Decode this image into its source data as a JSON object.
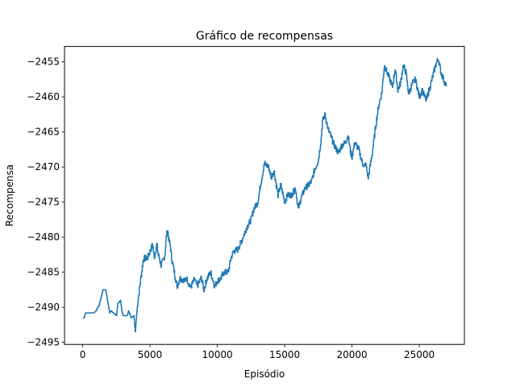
{
  "chart_data": {
    "type": "line",
    "title": "Gráfico de recompensas",
    "xlabel": "Episódio",
    "ylabel": "Recompensa",
    "xlim": [
      -1350,
      28350
    ],
    "ylim": [
      -2495.3,
      -2452.8
    ],
    "xticks": [
      0,
      5000,
      10000,
      15000,
      20000,
      25000
    ],
    "xtick_labels": [
      "0",
      "5000",
      "10000",
      "15000",
      "20000",
      "25000"
    ],
    "yticks": [
      -2495,
      -2490,
      -2485,
      -2480,
      -2475,
      -2470,
      -2465,
      -2460,
      -2455
    ],
    "ytick_labels": [
      "−2495",
      "−2490",
      "−2485",
      "−2480",
      "−2475",
      "−2470",
      "−2465",
      "−2460",
      "−2455"
    ],
    "grid": false,
    "color": "#1f77b4",
    "series": [
      {
        "x": [
          0,
          100,
          200,
          800,
          1000,
          1100,
          1200,
          1500,
          1600,
          1700,
          2000,
          2100,
          2500,
          2600,
          2800,
          2900,
          3000,
          3300,
          3400,
          3600,
          3800,
          3900,
          4000,
          4100,
          4200,
          4300,
          4500,
          4600,
          4800,
          5000,
          5200,
          5300,
          5500,
          5600,
          5700,
          5800,
          6000,
          6100,
          6200,
          6300,
          6400,
          6500,
          6600,
          6700,
          6800,
          6900,
          7000,
          7100,
          7200,
          7300,
          7400,
          7600,
          7700,
          8000,
          8300,
          8500,
          8800,
          9000,
          9200,
          9500,
          9800,
          10000,
          10200,
          10500,
          10800,
          11000,
          11200,
          11500,
          11800,
          12000,
          12200,
          12500,
          12700,
          13000,
          13200,
          13300,
          13500,
          13800,
          14000,
          14200,
          14500,
          14700,
          15000,
          15200,
          15500,
          15800,
          16000,
          16200,
          16500,
          16800,
          17000,
          17200,
          17500,
          17700,
          17800,
          18000,
          18200,
          18500,
          18700,
          19000,
          19200,
          19500,
          19700,
          19900,
          20000,
          20200,
          20500,
          20700,
          20900,
          21000,
          21200,
          21500,
          21800,
          22000,
          22200,
          22400,
          22600,
          22800,
          23000,
          23200,
          23400,
          23600,
          23800,
          24000,
          24200,
          24500,
          24700,
          25000,
          25200,
          25500,
          25800,
          26000,
          26200,
          26400,
          26600,
          26800,
          27000
        ],
        "y": [
          -2491.5,
          -2491.5,
          -2490.8,
          -2490.8,
          -2490.5,
          -2490.0,
          -2489.8,
          -2487.5,
          -2487.5,
          -2487.5,
          -2490.8,
          -2490.5,
          -2491.2,
          -2489.5,
          -2489.0,
          -2490.5,
          -2491.2,
          -2491.2,
          -2490.5,
          -2491.5,
          -2491.2,
          -2493.5,
          -2491.0,
          -2489.0,
          -2487.5,
          -2486.0,
          -2483.2,
          -2483.0,
          -2483.0,
          -2482.0,
          -2481.0,
          -2483.0,
          -2481.0,
          -2482.5,
          -2483.0,
          -2484.0,
          -2483.2,
          -2482.5,
          -2480.0,
          -2479.0,
          -2480.5,
          -2481.2,
          -2483.0,
          -2484.0,
          -2485.0,
          -2486.0,
          -2487.0,
          -2486.5,
          -2485.8,
          -2486.0,
          -2486.0,
          -2486.2,
          -2485.8,
          -2487.2,
          -2486.0,
          -2487.0,
          -2485.8,
          -2487.5,
          -2486.0,
          -2485.0,
          -2487.0,
          -2486.2,
          -2486.0,
          -2485.0,
          -2485.0,
          -2483.0,
          -2482.0,
          -2481.8,
          -2480.5,
          -2479.5,
          -2478.5,
          -2477.5,
          -2476.0,
          -2475.0,
          -2472.5,
          -2471.5,
          -2469.5,
          -2470.0,
          -2471.5,
          -2470.5,
          -2474.0,
          -2472.5,
          -2475.0,
          -2474.0,
          -2474.0,
          -2473.0,
          -2476.0,
          -2474.5,
          -2473.0,
          -2472.5,
          -2472.0,
          -2470.5,
          -2469.0,
          -2466.0,
          -2463.5,
          -2462.5,
          -2464.5,
          -2466.0,
          -2467.0,
          -2468.0,
          -2467.0,
          -2466.5,
          -2465.5,
          -2468.0,
          -2468.5,
          -2466.5,
          -2467.5,
          -2469.0,
          -2470.0,
          -2469.5,
          -2471.5,
          -2468.0,
          -2463.5,
          -2461.0,
          -2459.5,
          -2455.5,
          -2456.5,
          -2457.5,
          -2458.5,
          -2456.0,
          -2459.0,
          -2458.0,
          -2455.5,
          -2456.5,
          -2459.5,
          -2458.0,
          -2457.5,
          -2460.0,
          -2459.0,
          -2460.5,
          -2458.5,
          -2457.0,
          -2455.5,
          -2454.5,
          -2456.5,
          -2457.5,
          -2458.5
        ],
        "noise": true
      }
    ]
  }
}
